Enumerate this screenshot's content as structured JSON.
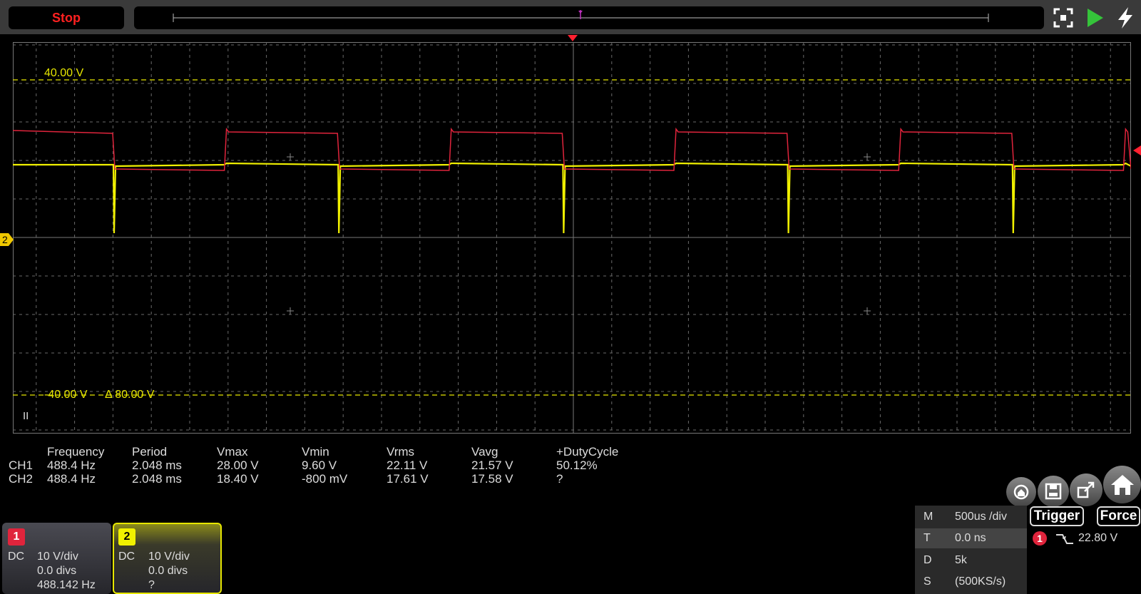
{
  "toolbar": {
    "stop_label": "Stop",
    "icons": [
      "fullscreen-icon",
      "play-icon",
      "auto-setup-icon"
    ]
  },
  "screen": {
    "upper_cursor_label": "40.00 V",
    "lower_cursor_label": "-40.00 V",
    "delta_label": "Δ 80.00 V",
    "ch2_marker": "2",
    "pause_label": "II",
    "colors": {
      "ch1": "#e0243c",
      "ch2": "#f0f000",
      "cursor": "#e6e600",
      "grid": "#6a6a6a"
    }
  },
  "measurements": {
    "headers": [
      "Frequency",
      "Period",
      "Vmax",
      "Vmin",
      "Vrms",
      "Vavg",
      "+DutyCycle"
    ],
    "rows": [
      {
        "ch": "CH1",
        "values": [
          "488.4 Hz",
          "2.048 ms",
          "28.00 V",
          "9.60 V",
          "22.11 V",
          "21.57 V",
          "50.12%"
        ]
      },
      {
        "ch": "CH2",
        "values": [
          "488.4 Hz",
          "2.048 ms",
          "18.40 V",
          "-800 mV",
          "17.61 V",
          "17.58 V",
          "?"
        ]
      }
    ]
  },
  "channels": [
    {
      "num": "1",
      "coupling": "DC",
      "scale": "10 V/div",
      "offset": "0.0 divs",
      "freq": "488.142 Hz",
      "color": "#e0243c"
    },
    {
      "num": "2",
      "coupling": "DC",
      "scale": "10 V/div",
      "offset": "0.0 divs",
      "freq": "?",
      "color": "#f0f000"
    }
  ],
  "timebase": {
    "rows": [
      {
        "key": "M",
        "value": "500us /div"
      },
      {
        "key": "T",
        "value": "0.0 ns"
      },
      {
        "key": "D",
        "value": "5k"
      },
      {
        "key": "S",
        "value": "(500KS/s)"
      }
    ]
  },
  "trigger": {
    "trigger_label": "Trigger",
    "force_label": "Force",
    "source": "1",
    "level": "22.80 V"
  },
  "bottom_icons": [
    "capture-icon",
    "save-icon",
    "export-icon",
    "home-icon"
  ]
}
